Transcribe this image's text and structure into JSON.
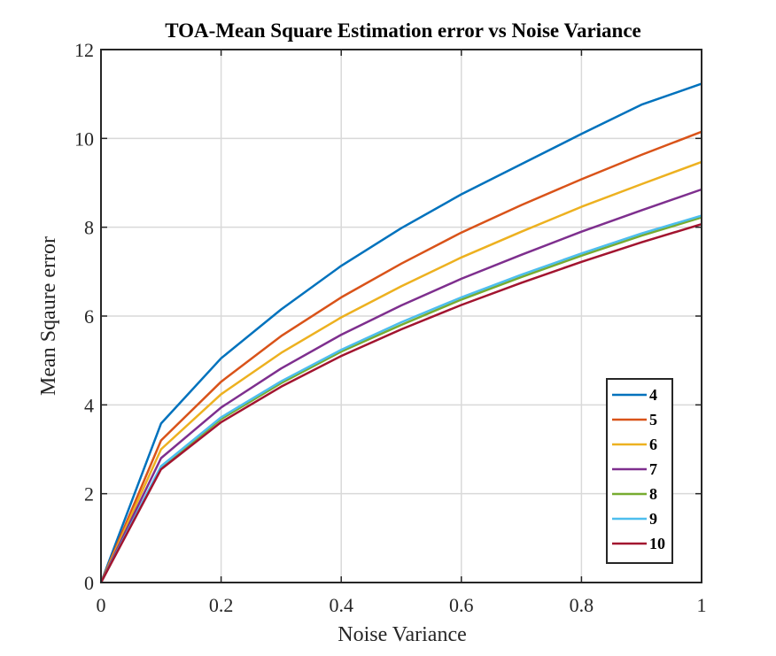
{
  "chart_data": {
    "type": "line",
    "title": "TOA-Mean Square Estimation error vs Noise Variance",
    "xlabel": "Noise Variance",
    "ylabel": "Mean Sqaure error",
    "xlim": [
      0,
      1
    ],
    "ylim": [
      0,
      12
    ],
    "xticks": [
      "0",
      "0.2",
      "0.4",
      "0.6",
      "0.8",
      "1"
    ],
    "yticks": [
      "0",
      "2",
      "4",
      "6",
      "8",
      "10",
      "12"
    ],
    "grid": true,
    "legend_position": "bottom-right",
    "x": [
      0,
      0.1,
      0.2,
      0.3,
      0.4,
      0.5,
      0.6,
      0.7,
      0.8,
      0.9,
      1.0
    ],
    "series": [
      {
        "name": "4",
        "color": "#0072BD",
        "values": [
          0,
          3.58,
          5.05,
          6.15,
          7.13,
          7.98,
          8.74,
          9.42,
          10.1,
          10.76,
          11.23
        ]
      },
      {
        "name": "5",
        "color": "#D95319",
        "values": [
          0,
          3.2,
          4.52,
          5.55,
          6.42,
          7.18,
          7.88,
          8.5,
          9.08,
          9.63,
          10.15
        ]
      },
      {
        "name": "6",
        "color": "#EDB120",
        "values": [
          0,
          3.0,
          4.24,
          5.17,
          5.97,
          6.67,
          7.32,
          7.9,
          8.46,
          8.97,
          9.47
        ]
      },
      {
        "name": "7",
        "color": "#7E2F8E",
        "values": [
          0,
          2.8,
          3.94,
          4.82,
          5.58,
          6.24,
          6.84,
          7.38,
          7.9,
          8.38,
          8.85
        ]
      },
      {
        "name": "8",
        "color": "#77AC30",
        "values": [
          0,
          2.6,
          3.68,
          4.49,
          5.2,
          5.8,
          6.37,
          6.88,
          7.36,
          7.81,
          8.22
        ]
      },
      {
        "name": "9",
        "color": "#4DBEEE",
        "values": [
          0,
          2.62,
          3.72,
          4.53,
          5.24,
          5.86,
          6.42,
          6.93,
          7.41,
          7.86,
          8.26
        ]
      },
      {
        "name": "10",
        "color": "#A2142F",
        "values": [
          0,
          2.55,
          3.61,
          4.41,
          5.1,
          5.7,
          6.25,
          6.75,
          7.22,
          7.66,
          8.07
        ]
      }
    ]
  }
}
